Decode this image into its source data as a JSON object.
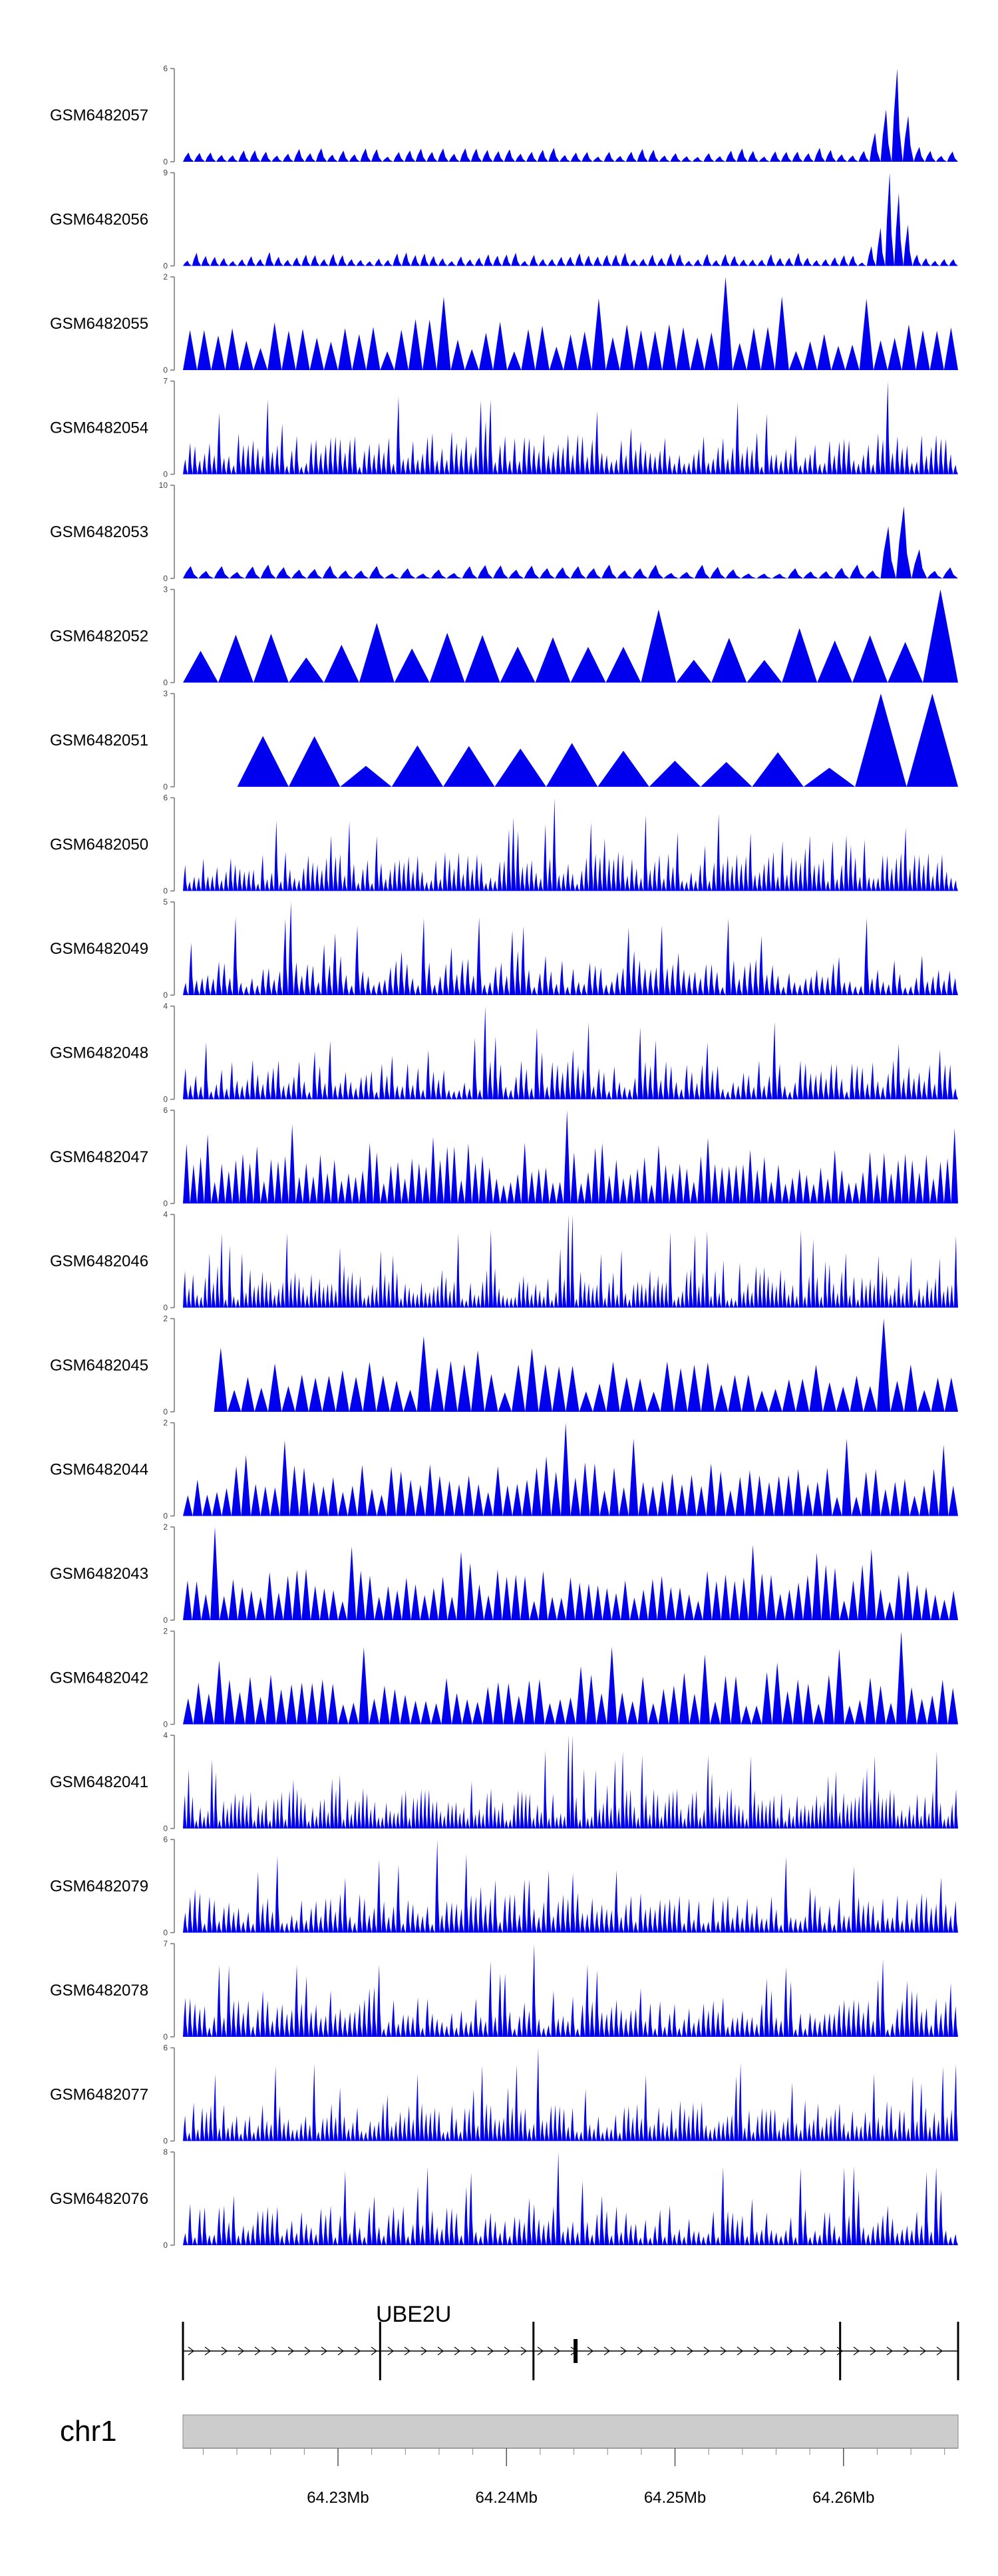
{
  "colors": {
    "track_fill": "#0000ee",
    "axis": "#777777",
    "gene": "#000000",
    "ideogram_fill": "#cccccc",
    "ideogram_stroke": "#888888"
  },
  "chart_data": {
    "type": "area",
    "chromosome": "chr1",
    "genomic_range_mb": [
      64.2208,
      64.2668
    ],
    "tracks": [
      {
        "name": "GSM6482057",
        "ymax": "6",
        "ymax_value": 6,
        "seed": 11,
        "style": "peak_right",
        "density": 70,
        "peak_at": 0.92
      },
      {
        "name": "GSM6482056",
        "ymax": "9",
        "ymax_value": 9,
        "seed": 12,
        "style": "peak_right",
        "density": 85,
        "peak_at": 0.915
      },
      {
        "name": "GSM6482055",
        "ymax": "2",
        "ymax_value": 2,
        "seed": 13,
        "style": "triangles",
        "density": 55,
        "peak_at": 0.7
      },
      {
        "name": "GSM6482054",
        "ymax": "7",
        "ymax_value": 7,
        "seed": 14,
        "style": "dense",
        "density": 160,
        "peak_at": 0.91
      },
      {
        "name": "GSM6482053",
        "ymax": "10",
        "ymax_value": 10,
        "seed": 15,
        "style": "peak_right",
        "density": 50,
        "peak_at": 0.925
      },
      {
        "name": "GSM6482052",
        "ymax": "3",
        "ymax_value": 3,
        "seed": 16,
        "style": "sparse_triangles",
        "density": 22,
        "peak_at": 0.98
      },
      {
        "name": "GSM6482051",
        "ymax": "3",
        "ymax_value": 3,
        "seed": 17,
        "style": "sparse_triangles_start",
        "density": 14,
        "peak_at": 0.93
      },
      {
        "name": "GSM6482050",
        "ymax": "6",
        "ymax_value": 6,
        "seed": 18,
        "style": "dense",
        "density": 170,
        "peak_at": 0.48
      },
      {
        "name": "GSM6482049",
        "ymax": "5",
        "ymax_value": 5,
        "seed": 19,
        "style": "dense",
        "density": 140,
        "peak_at": 0.14
      },
      {
        "name": "GSM6482048",
        "ymax": "4",
        "ymax_value": 4,
        "seed": 20,
        "style": "dense",
        "density": 150,
        "peak_at": 0.39
      },
      {
        "name": "GSM6482047",
        "ymax": "6",
        "ymax_value": 6,
        "seed": 21,
        "style": "triangles_dense",
        "density": 110,
        "peak_at": 0.495
      },
      {
        "name": "GSM6482046",
        "ymax": "4",
        "ymax_value": 4,
        "seed": 22,
        "style": "dense",
        "density": 190,
        "peak_at": 0.5
      },
      {
        "name": "GSM6482045",
        "ymax": "2",
        "ymax_value": 2,
        "seed": 23,
        "style": "triangles_start",
        "density": 55,
        "peak_at": 0.905
      },
      {
        "name": "GSM6482044",
        "ymax": "2",
        "ymax_value": 2,
        "seed": 24,
        "style": "triangles",
        "density": 80,
        "peak_at": 0.495
      },
      {
        "name": "GSM6482043",
        "ymax": "2",
        "ymax_value": 2,
        "seed": 25,
        "style": "triangles",
        "density": 85,
        "peak_at": 0.04
      },
      {
        "name": "GSM6482042",
        "ymax": "2",
        "ymax_value": 2,
        "seed": 26,
        "style": "triangles",
        "density": 75,
        "peak_at": 0.925
      },
      {
        "name": "GSM6482041",
        "ymax": "4",
        "ymax_value": 4,
        "seed": 27,
        "style": "dense",
        "density": 200,
        "peak_at": 0.5
      },
      {
        "name": "GSM6482079",
        "ymax": "6",
        "ymax_value": 6,
        "seed": 28,
        "style": "dense",
        "density": 160,
        "peak_at": 0.33
      },
      {
        "name": "GSM6482078",
        "ymax": "7",
        "ymax_value": 7,
        "seed": 29,
        "style": "dense",
        "density": 160,
        "peak_at": 0.455
      },
      {
        "name": "GSM6482077",
        "ymax": "6",
        "ymax_value": 6,
        "seed": 30,
        "style": "dense",
        "density": 180,
        "peak_at": 0.46
      },
      {
        "name": "GSM6482076",
        "ymax": "8",
        "ymax_value": 8,
        "seed": 31,
        "style": "dense",
        "density": 160,
        "peak_at": 0.485
      }
    ],
    "gene": {
      "name": "UBE2U",
      "start_mb": 64.2208,
      "end_mb": 64.2668,
      "exons_mb": [
        64.2208,
        64.2325,
        64.2416,
        64.2441,
        64.2598,
        64.2668
      ],
      "strand": "+"
    },
    "axis_ticks": [
      {
        "label": "64.23Mb",
        "value": 64.23
      },
      {
        "label": "64.24Mb",
        "value": 64.24
      },
      {
        "label": "64.25Mb",
        "value": 64.25
      },
      {
        "label": "64.26Mb",
        "value": 64.26
      }
    ],
    "minor_ticks_mb": [
      64.222,
      64.224,
      64.226,
      64.228,
      64.232,
      64.234,
      64.236,
      64.238,
      64.242,
      64.244,
      64.246,
      64.248,
      64.252,
      64.254,
      64.256,
      64.258,
      64.262,
      64.264,
      64.266
    ]
  }
}
